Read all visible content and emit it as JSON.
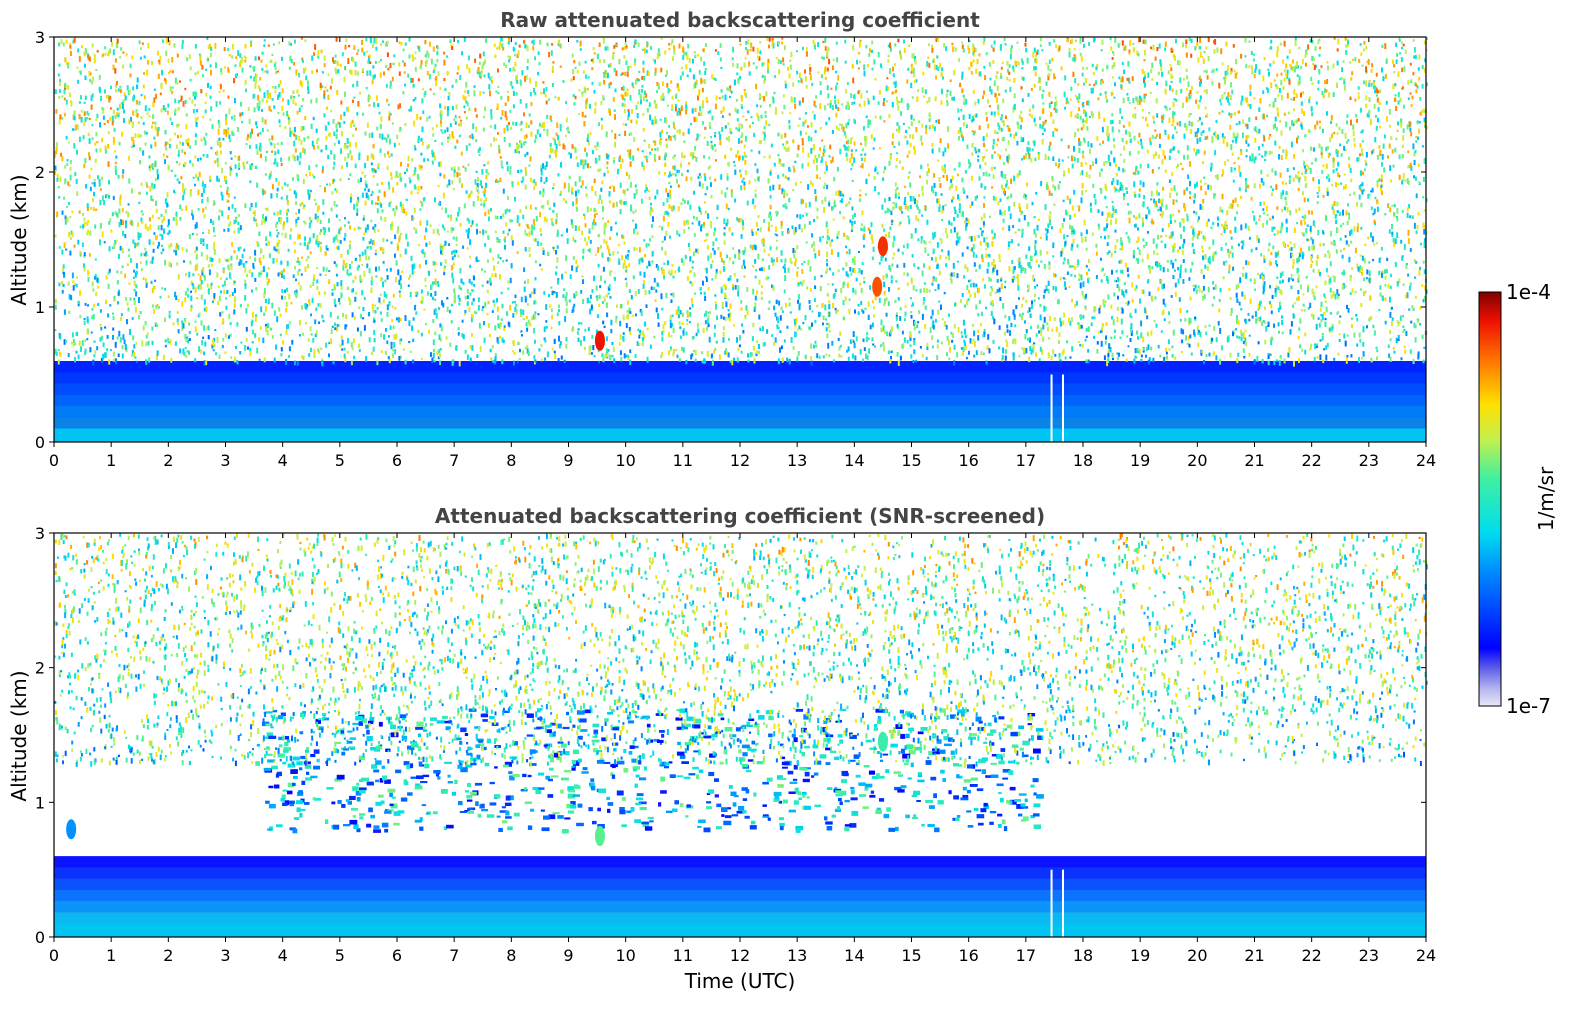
{
  "chart_data": [
    {
      "type": "heatmap",
      "title": "Raw attenuated backscattering coefficient",
      "xlabel": "",
      "ylabel": "Altitude (km)",
      "xlim": [
        0,
        24
      ],
      "ylim": [
        0,
        3
      ],
      "xticks": [
        "0",
        "1",
        "2",
        "3",
        "4",
        "5",
        "6",
        "7",
        "8",
        "9",
        "10",
        "11",
        "12",
        "13",
        "14",
        "15",
        "16",
        "17",
        "18",
        "19",
        "20",
        "21",
        "22",
        "23",
        "24"
      ],
      "yticks": [
        "0",
        "1",
        "2",
        "3"
      ],
      "x_units": "hours UTC",
      "y_units": "km",
      "color_scale": "log",
      "features": [
        {
          "feature": "surface-layer",
          "x": [
            0,
            24
          ],
          "y": [
            0,
            0.1
          ],
          "value": 1.5e-06
        },
        {
          "feature": "aerosol-layer",
          "x": [
            0,
            24
          ],
          "y": [
            0.1,
            0.6
          ],
          "value": 3e-07
        },
        {
          "feature": "noise-region",
          "x": [
            0,
            24
          ],
          "y": [
            0.6,
            3.0
          ],
          "value": 3e-06
        },
        {
          "feature": "cloud-speck",
          "x": 9.55,
          "y": 0.75,
          "value": 6e-05
        },
        {
          "feature": "cloud-speck",
          "x": 14.5,
          "y": 1.45,
          "value": 5e-05
        },
        {
          "feature": "cloud-speck",
          "x": 14.4,
          "y": 1.15,
          "value": 4e-05
        },
        {
          "feature": "data-gap",
          "x": [
            17.45,
            17.65
          ],
          "y": [
            0,
            0.5
          ]
        }
      ]
    },
    {
      "type": "heatmap",
      "title": "Attenuated backscattering coefficient (SNR-screened)",
      "xlabel": "Time (UTC)",
      "ylabel": "Altitude (km)",
      "xlim": [
        0,
        24
      ],
      "ylim": [
        0,
        3
      ],
      "xticks": [
        "0",
        "1",
        "2",
        "3",
        "4",
        "5",
        "6",
        "7",
        "8",
        "9",
        "10",
        "11",
        "12",
        "13",
        "14",
        "15",
        "16",
        "17",
        "18",
        "19",
        "20",
        "21",
        "22",
        "23",
        "24"
      ],
      "yticks": [
        "0",
        "1",
        "2",
        "3"
      ],
      "x_units": "hours UTC",
      "y_units": "km",
      "color_scale": "log",
      "features": [
        {
          "feature": "surface-layer",
          "x": [
            0,
            24
          ],
          "y": [
            0,
            0.1
          ],
          "value": 1.5e-06
        },
        {
          "feature": "aerosol-layer",
          "x": [
            0,
            24
          ],
          "y": [
            0.1,
            0.6
          ],
          "value": 2e-07
        },
        {
          "feature": "clear-region",
          "x": [
            0,
            24
          ],
          "y": [
            0.6,
            1.1
          ]
        },
        {
          "feature": "aerosol-patches",
          "x": [
            3.5,
            17.2
          ],
          "y": [
            0.8,
            1.7
          ],
          "value": 1.2e-06
        },
        {
          "feature": "screened-noise",
          "x": [
            0,
            24
          ],
          "y": [
            1.3,
            3.0
          ],
          "value": 4e-06
        },
        {
          "feature": "cloud-speck",
          "x": 0.3,
          "y": 0.8,
          "value": 1e-06
        },
        {
          "feature": "cloud-speck",
          "x": 9.55,
          "y": 0.75,
          "value": 5e-06
        },
        {
          "feature": "cloud-speck",
          "x": 14.5,
          "y": 1.45,
          "value": 4e-06
        },
        {
          "feature": "data-gap",
          "x": [
            17.45,
            17.65
          ],
          "y": [
            0,
            0.5
          ]
        }
      ]
    }
  ],
  "colorbar": {
    "label": "1/m/sr",
    "max_label": "1e-4",
    "min_label": "1e-7",
    "vmin": 1e-07,
    "vmax": 0.0001,
    "colormap": "jet"
  }
}
